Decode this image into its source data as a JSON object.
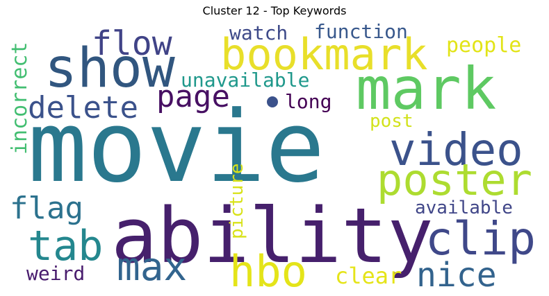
{
  "title": "Cluster 12 - Top Keywords",
  "wordcloud": {
    "words": [
      {
        "text": "movie",
        "color": "#2a788e"
      },
      {
        "text": "ability",
        "color": "#46206c"
      },
      {
        "text": "mark",
        "color": "#5ec962"
      },
      {
        "text": "show",
        "color": "#31567f"
      },
      {
        "text": "bookmark",
        "color": "#e8df2a"
      },
      {
        "text": "video",
        "color": "#3b528b"
      },
      {
        "text": "poster",
        "color": "#addc30"
      },
      {
        "text": "clip",
        "color": "#3f4889"
      },
      {
        "text": "tab",
        "color": "#24878e"
      },
      {
        "text": "max",
        "color": "#32648e"
      },
      {
        "text": "hbo",
        "color": "#e4e419"
      },
      {
        "text": "flow",
        "color": "#404387"
      },
      {
        "text": "delete",
        "color": "#3b528b"
      },
      {
        "text": "page",
        "color": "#471063"
      },
      {
        "text": "flag",
        "color": "#2c728e"
      },
      {
        "text": "nice",
        "color": "#33638d"
      },
      {
        "text": "unavailable",
        "color": "#1f988b"
      },
      {
        "text": "watch",
        "color": "#3e4a89"
      },
      {
        "text": "function",
        "color": "#38588c"
      },
      {
        "text": "people",
        "color": "#e2e418"
      },
      {
        "text": "incorrect",
        "color": "#42be71"
      },
      {
        "text": "long",
        "color": "#440154"
      },
      {
        "text": "post",
        "color": "#d2e21b"
      },
      {
        "text": "picture",
        "color": "#d8e219"
      },
      {
        "text": "available",
        "color": "#404688"
      },
      {
        "text": "clear",
        "color": "#e5e419"
      },
      {
        "text": "weird",
        "color": "#481b6d"
      }
    ]
  }
}
